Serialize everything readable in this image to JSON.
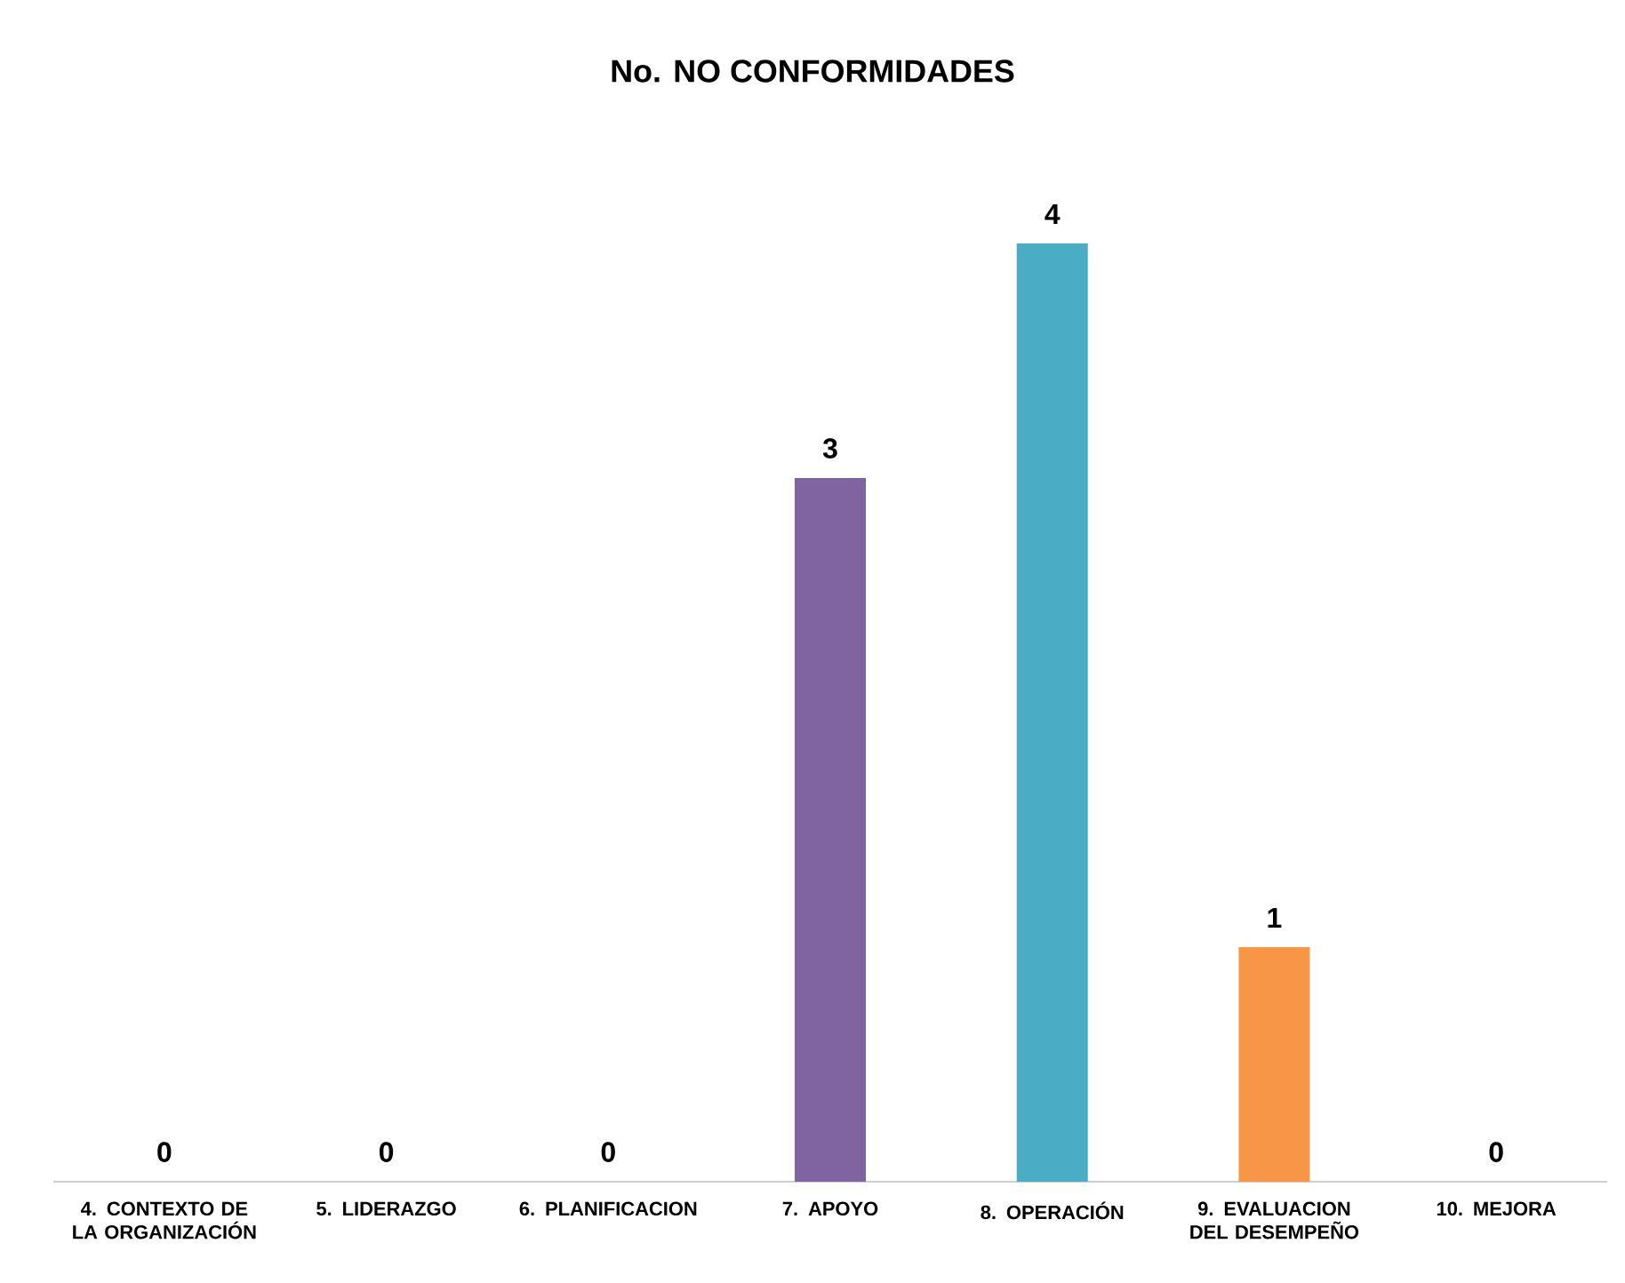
{
  "chart_data": {
    "type": "bar",
    "title": "No. NO CONFORMIDADES",
    "categories": [
      "4. CONTEXTO DE LA ORGANIZACIÓN",
      "5. LIDERAZGO",
      "6. PLANIFICACION",
      "7. APOYO",
      "8. OPERACIÓN",
      "9. EVALUACION DEL DESEMPEÑO",
      "10. MEJORA"
    ],
    "values": [
      0,
      0,
      0,
      3,
      4,
      1,
      0
    ],
    "colors": [
      "#4f81bd",
      "#c0504d",
      "#9bbb59",
      "#8064a2",
      "#4bacc6",
      "#f79646",
      "#2c4d75"
    ],
    "data_labels": true
  }
}
